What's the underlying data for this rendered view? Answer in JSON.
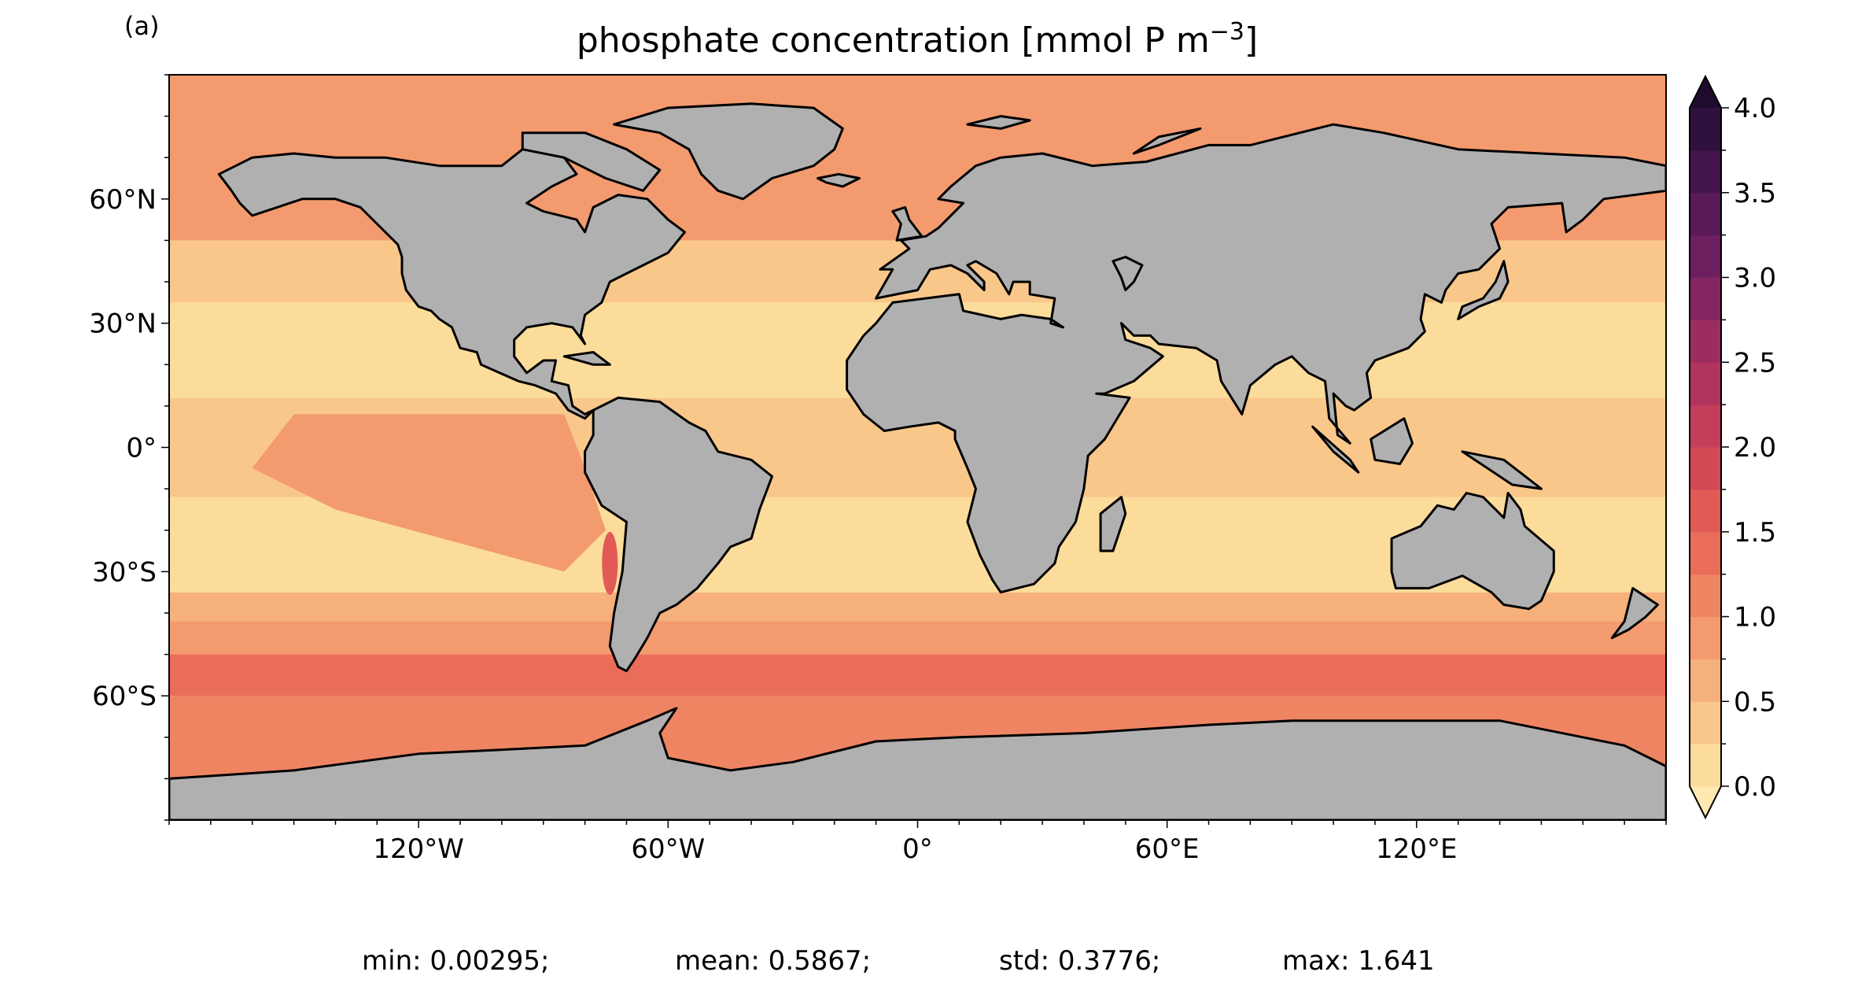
{
  "panel_label": "(a)",
  "title": {
    "main": "phosphate concentration [mmol P m",
    "superscript": "−3",
    "close": "]"
  },
  "map": {
    "projection": "PlateCarree",
    "extent": {
      "lon": [
        -180,
        180
      ],
      "lat": [
        -90,
        90
      ]
    },
    "land_color": "#b0b0b0",
    "no_data_color": "#ffffff",
    "coastline_color": "#000000",
    "lon_ticks": [
      {
        "value": -120,
        "label": "120°W"
      },
      {
        "value": -60,
        "label": "60°W"
      },
      {
        "value": 0,
        "label": "0°"
      },
      {
        "value": 60,
        "label": "60°E"
      },
      {
        "value": 120,
        "label": "120°E"
      }
    ],
    "lat_ticks": [
      {
        "value": 60,
        "label": "60°N"
      },
      {
        "value": 30,
        "label": "30°N"
      },
      {
        "value": 0,
        "label": "0°"
      },
      {
        "value": -30,
        "label": "30°S"
      },
      {
        "value": -60,
        "label": "60°S"
      }
    ],
    "minor_tick_step_deg": 10,
    "field_bands": [
      {
        "lat": [
          -90,
          -60
        ],
        "value": 1.05
      },
      {
        "lat": [
          -60,
          -50
        ],
        "value": 1.35
      },
      {
        "lat": [
          -50,
          -42
        ],
        "value": 0.95
      },
      {
        "lat": [
          -42,
          -35
        ],
        "value": 0.6
      },
      {
        "lat": [
          -35,
          -12
        ],
        "value": 0.2
      },
      {
        "lat": [
          -12,
          12
        ],
        "value": 0.3
      },
      {
        "lat": [
          12,
          35
        ],
        "value": 0.15
      },
      {
        "lat": [
          35,
          50
        ],
        "value": 0.45
      },
      {
        "lat": [
          50,
          90
        ],
        "value": 0.9
      }
    ],
    "east_pacific_value": 0.75,
    "peru_upwelling_value": 1.6
  },
  "colorbar": {
    "vmin": 0.0,
    "vmax": 4.0,
    "step": 0.25,
    "extend": "both",
    "ticks": [
      {
        "value": 0.0,
        "label": "0.0"
      },
      {
        "value": 0.5,
        "label": "0.5"
      },
      {
        "value": 1.0,
        "label": "1.0"
      },
      {
        "value": 1.5,
        "label": "1.5"
      },
      {
        "value": 2.0,
        "label": "2.0"
      },
      {
        "value": 2.5,
        "label": "2.5"
      },
      {
        "value": 3.0,
        "label": "3.0"
      },
      {
        "value": 3.5,
        "label": "3.5"
      },
      {
        "value": 4.0,
        "label": "4.0"
      }
    ],
    "colors": [
      "#fcdc9a",
      "#f9c78a",
      "#f6b07c",
      "#f39a6f",
      "#ef8462",
      "#e96d59",
      "#e15a55",
      "#d44956",
      "#c43d5a",
      "#b1345e",
      "#9c2d61",
      "#852662",
      "#6e1f5f",
      "#581a58",
      "#43154c",
      "#30103d"
    ],
    "under_color": "#ffe9b0",
    "over_color": "#1f0b2e"
  },
  "stats": {
    "min": "min: 0.00295;",
    "mean": "mean: 0.5867;",
    "std": "std: 0.3776;",
    "max": "max: 1.641"
  }
}
